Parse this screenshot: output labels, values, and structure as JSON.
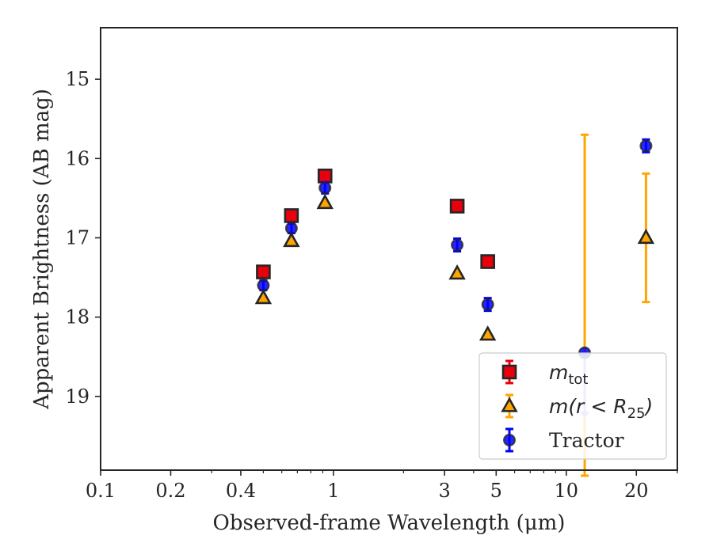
{
  "chart_data": {
    "type": "scatter",
    "xlabel": "Observed-frame Wavelength (μm)",
    "ylabel": "Apparent Brightness (AB mag)",
    "xscale": "log",
    "yaxis_inverted": true,
    "xlim": [
      0.1,
      30
    ],
    "ylim": [
      19.93,
      14.35
    ],
    "xticks": [
      {
        "value": 0.1,
        "label": "0.1"
      },
      {
        "value": 0.2,
        "label": "0.2"
      },
      {
        "value": 0.4,
        "label": "0.4"
      },
      {
        "value": 1,
        "label": "1"
      },
      {
        "value": 3,
        "label": "3"
      },
      {
        "value": 5,
        "label": "5"
      },
      {
        "value": 10,
        "label": "10"
      },
      {
        "value": 20,
        "label": "20"
      }
    ],
    "yticks": [
      {
        "value": 15,
        "label": "15"
      },
      {
        "value": 16,
        "label": "16"
      },
      {
        "value": 17,
        "label": "17"
      },
      {
        "value": 18,
        "label": "18"
      },
      {
        "value": 19,
        "label": "19"
      }
    ],
    "grid": false,
    "legend_position": "lower-right",
    "series": [
      {
        "name": "m_tot",
        "legend_main": "m",
        "legend_sub": "tot",
        "marker": "square",
        "color": "#e8000b",
        "edgecolor": "#262626",
        "errcolor": "#e8000b",
        "points": [
          {
            "x": 0.5,
            "y": 17.43,
            "err": 0.06
          },
          {
            "x": 0.66,
            "y": 16.72,
            "err": 0.06
          },
          {
            "x": 0.92,
            "y": 16.22,
            "err": 0.07
          },
          {
            "x": 3.4,
            "y": 16.6,
            "err": 0.07
          },
          {
            "x": 4.6,
            "y": 17.3,
            "err": 0.07
          }
        ]
      },
      {
        "name": "m(r < R25)",
        "legend_main": "m(r < R",
        "legend_sub": "25",
        "legend_tail": ")",
        "marker": "triangle",
        "color": "#ffa500",
        "edgecolor": "#262626",
        "errcolor": "#ffa500",
        "points": [
          {
            "x": 0.5,
            "y": 17.76
          },
          {
            "x": 0.66,
            "y": 17.04
          },
          {
            "x": 0.92,
            "y": 16.56
          },
          {
            "x": 3.4,
            "y": 17.45
          },
          {
            "x": 4.6,
            "y": 18.22
          },
          {
            "x": 22,
            "y": 17.0,
            "err": 0.81
          }
        ],
        "upper_limit": {
          "x": 12,
          "y_top": 15.7,
          "y_bottom": 20.0
        }
      },
      {
        "name": "Tractor",
        "legend_main": "Tractor",
        "marker": "circle",
        "color": "#0000ff",
        "edgecolor": "#262626",
        "errcolor": "#0000ff",
        "points": [
          {
            "x": 0.5,
            "y": 17.6,
            "err": 0.06
          },
          {
            "x": 0.66,
            "y": 16.88,
            "err": 0.06
          },
          {
            "x": 0.92,
            "y": 16.37,
            "err": 0.07
          },
          {
            "x": 3.4,
            "y": 17.09,
            "err": 0.08
          },
          {
            "x": 4.6,
            "y": 17.84,
            "err": 0.08
          },
          {
            "x": 12,
            "y": 18.45,
            "err_upper": 0.0,
            "err_lower": 0.8
          },
          {
            "x": 22,
            "y": 15.84,
            "err": 0.08
          }
        ]
      }
    ]
  }
}
